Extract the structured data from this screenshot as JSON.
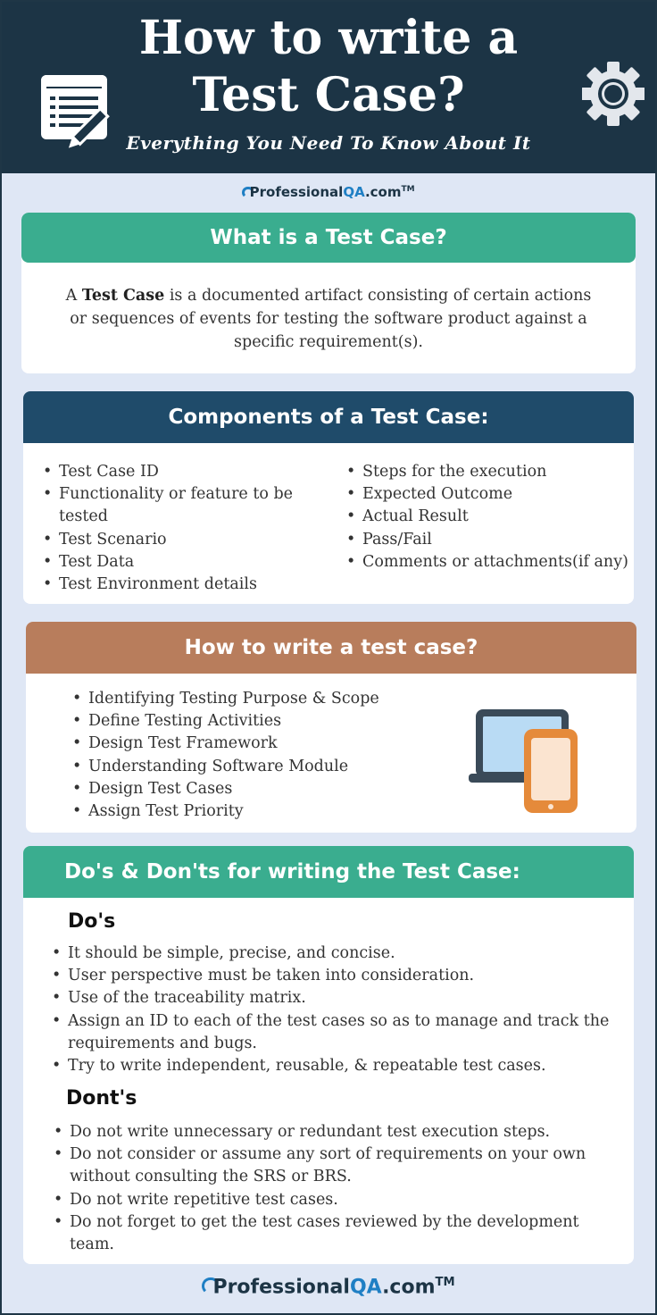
{
  "header": {
    "title_line1": "How to write a",
    "title_line2": "Test Case?",
    "subtitle": "Everything You Need To Know About It",
    "colors": {
      "background": "#1c3445",
      "text": "#ffffff"
    }
  },
  "logo": {
    "brand": "Professional",
    "accent": "QA",
    "domain": ".com",
    "tm": "TM"
  },
  "what_is": {
    "heading": "What is a Test Case?",
    "pre": "A ",
    "term": "Test Case",
    "definition": " is a documented artifact consisting of certain actions or sequences of events for testing the software product against a specific requirement(s)."
  },
  "components": {
    "heading": "Components of a Test Case:",
    "col_a": [
      "Test Case ID",
      "Functionality or feature to be tested",
      "Test Scenario",
      "Test Data",
      "Test Environment details"
    ],
    "col_b": [
      "Steps for the execution",
      "Expected Outcome",
      "Actual Result",
      "Pass/Fail",
      "Comments or attachments(if any)"
    ]
  },
  "how_to": {
    "heading": "How to write a test case?",
    "steps": [
      "Identifying Testing Purpose & Scope",
      "Define Testing Activities",
      "Design Test Framework",
      "Understanding Software Module",
      "Design Test Cases",
      "Assign Test Priority"
    ]
  },
  "dos_donts": {
    "heading": "Do's & Don'ts for writing the Test Case:",
    "dos_title": "Do's",
    "dos": [
      "It should be simple, precise, and concise.",
      "User perspective must be taken into consideration.",
      "Use of the traceability matrix.",
      "Assign an ID to each of the test cases so as to manage and track the requirements and bugs.",
      "Try to write independent, reusable, & repeatable test cases."
    ],
    "donts_title": "Dont's",
    "donts": [
      "Do not write unnecessary or redundant test execution steps.",
      "Do not consider or assume any sort of requirements on your own without consulting the SRS or BRS.",
      "Do not write repetitive test cases.",
      "Do not forget to get the test cases reviewed by the development team."
    ]
  },
  "icons": [
    "document-edit-icon",
    "gear-icon",
    "laptop-phone-icon"
  ],
  "colors": {
    "green": "#3aad8f",
    "navy": "#1f4b6a",
    "brown": "#b87d5c",
    "page_bg": "#dfe7f5"
  }
}
